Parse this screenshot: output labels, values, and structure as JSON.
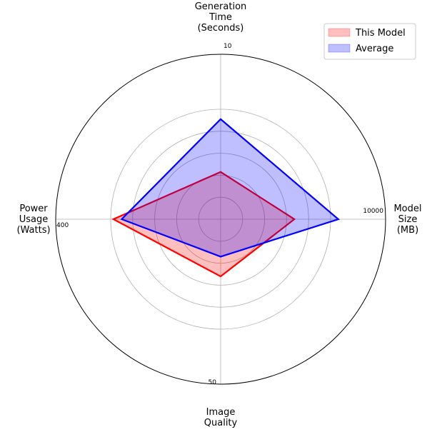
{
  "chart_data": {
    "type": "radar",
    "axes": [
      {
        "label_lines": [
          "Generation",
          "Time",
          "(Seconds)"
        ],
        "max_label": "10"
      },
      {
        "label_lines": [
          "Model",
          "Size",
          "(MB)"
        ],
        "max_label": "10000"
      },
      {
        "label_lines": [
          "Image",
          "Quality"
        ],
        "max_label": "50"
      },
      {
        "label_lines": [
          "Power",
          "Usage",
          "(Watts)"
        ],
        "max_label": "400"
      }
    ],
    "max_values": [
      10,
      10000,
      50,
      400
    ],
    "series": [
      {
        "name": "This Model",
        "values": [
          4.3,
          6700,
          26,
          390
        ],
        "color": "#ff0000",
        "fill": "#ff0000"
      },
      {
        "name": "Average",
        "values": [
          9.1,
          10700,
          17,
          360
        ],
        "color": "#0000ff",
        "fill": "#0000ff"
      }
    ],
    "grid_levels": 5,
    "grid": true,
    "legend_position": "top-right"
  }
}
